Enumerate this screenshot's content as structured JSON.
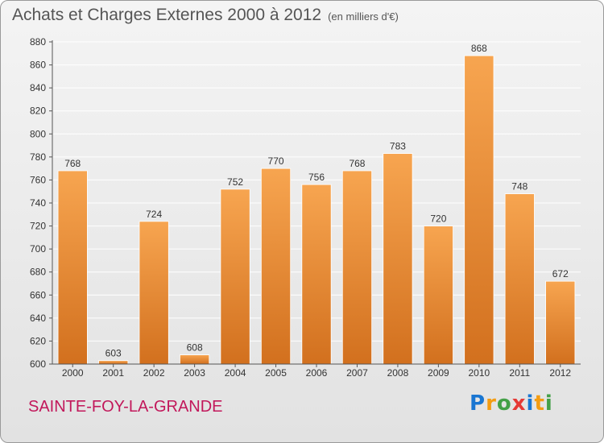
{
  "header": {
    "title": "Achats et Charges Externes 2000 à 2012",
    "subtitle": "(en milliers d'€)"
  },
  "footer": {
    "town": "SAINTE-FOY-LA-GRANDE",
    "logo_letters": [
      "P",
      "r",
      "o",
      "x",
      "i",
      "t",
      "i"
    ],
    "logo_colors": [
      "#1976d2",
      "#f39c12",
      "#43a047",
      "#e53935",
      "#1976d2",
      "#f39c12",
      "#43a047"
    ]
  },
  "colors": {
    "bar_light": "#f7a550",
    "bar_dark": "#d2701e",
    "grid": "#ffffff",
    "axis": "#555555",
    "text": "#333333",
    "town": "#c2185b"
  },
  "chart_data": {
    "type": "bar",
    "title": "Achats et Charges Externes 2000 à 2012",
    "subtitle": "(en milliers d'€)",
    "categories": [
      "2000",
      "2001",
      "2002",
      "2003",
      "2004",
      "2005",
      "2006",
      "2007",
      "2008",
      "2009",
      "2010",
      "2011",
      "2012"
    ],
    "values": [
      768,
      603,
      724,
      608,
      752,
      770,
      756,
      768,
      783,
      720,
      868,
      748,
      672
    ],
    "data_labels": [
      "768",
      "603",
      "724",
      "608",
      "752",
      "770",
      "756",
      "768",
      "783",
      "720",
      "868",
      "748",
      "672"
    ],
    "ylim": [
      600,
      880
    ],
    "yticks": [
      600,
      620,
      640,
      660,
      680,
      700,
      720,
      740,
      760,
      780,
      800,
      820,
      840,
      860,
      880
    ],
    "grid": true,
    "xlabel": "",
    "ylabel": ""
  }
}
